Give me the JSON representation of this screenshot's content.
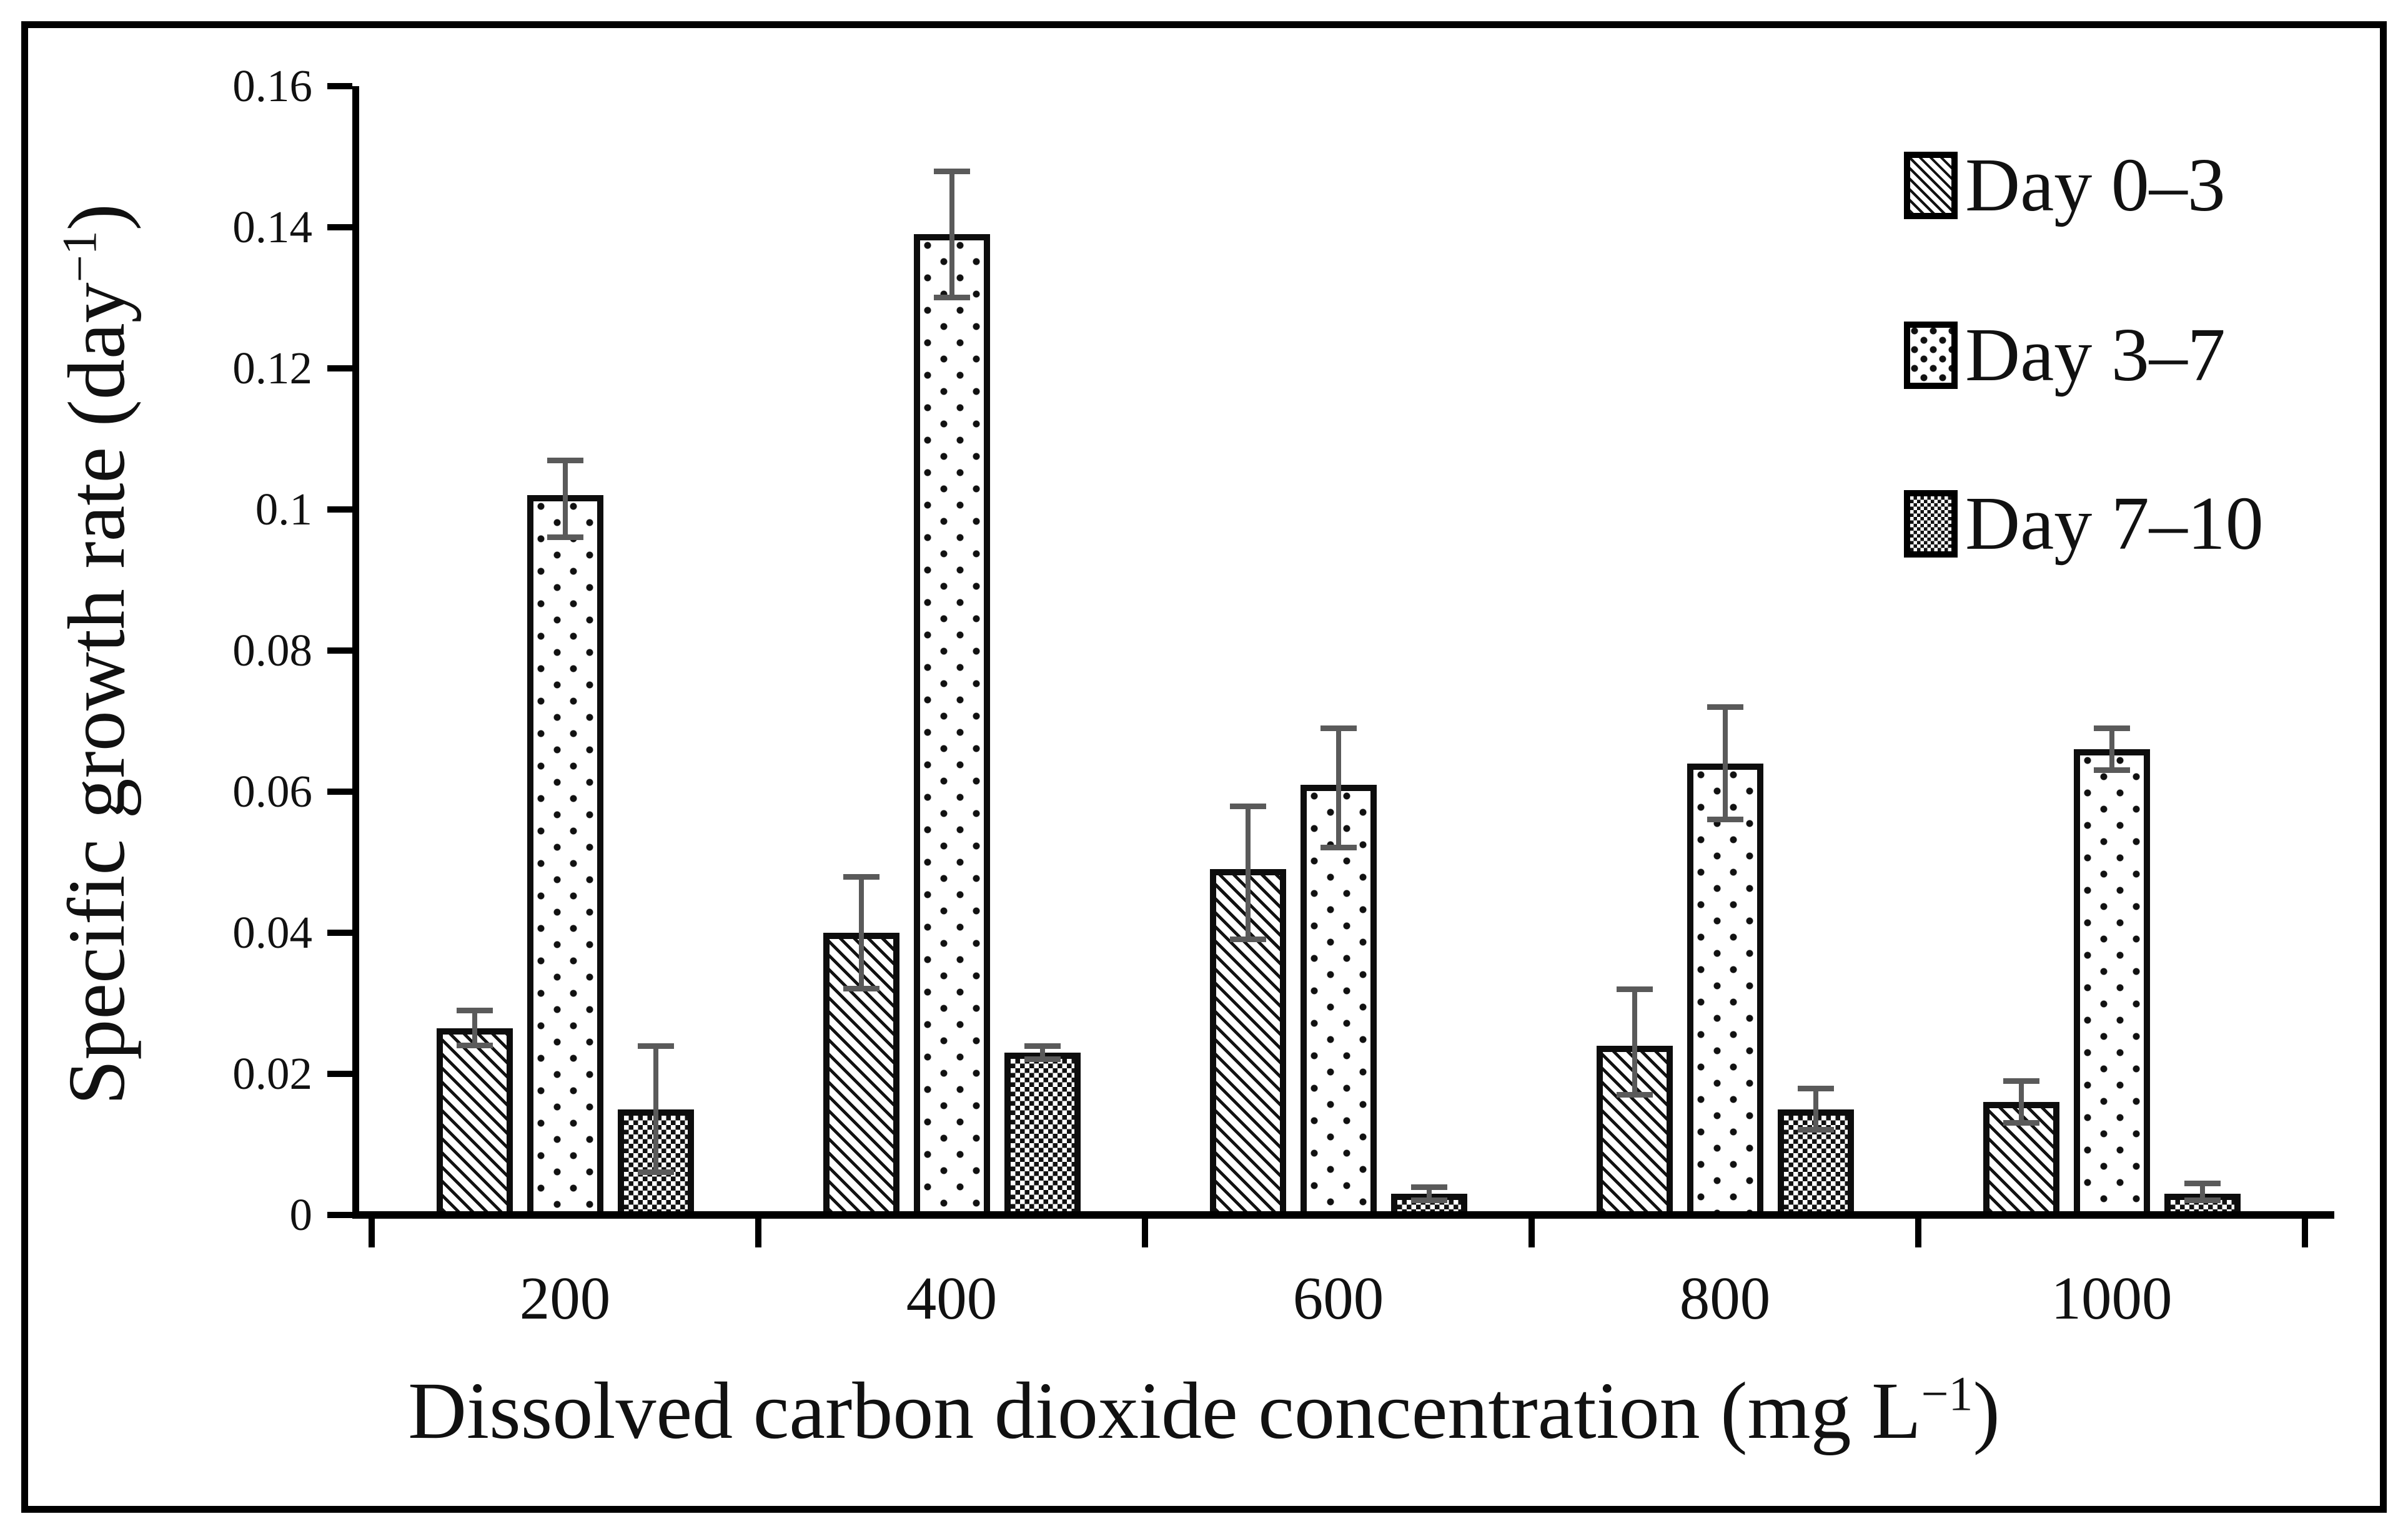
{
  "figure": {
    "background": "#ffffff",
    "frame_border_color": "#000000"
  },
  "chart_data": {
    "type": "bar",
    "title": "",
    "xlabel_html": "Dissolved carbon dioxide concentration (mg L<sup>−1</sup>)",
    "ylabel_html": "Specific growth rate (day<sup>−1</sup>)",
    "categories": [
      "200",
      "400",
      "600",
      "800",
      "1000"
    ],
    "y_ticks": [
      "0",
      "0.02",
      "0.04",
      "0.06",
      "0.08",
      "0.1",
      "0.12",
      "0.14",
      "0.16"
    ],
    "ylim": [
      0,
      0.16
    ],
    "grid": false,
    "legend_position": "top-right",
    "series": [
      {
        "name": "Day 0–3",
        "pattern": "diagonal-hatch",
        "values": [
          0.0265,
          0.04,
          0.049,
          0.024,
          0.016
        ],
        "error_low": [
          0.024,
          0.032,
          0.039,
          0.017,
          0.013
        ],
        "error_high": [
          0.029,
          0.048,
          0.058,
          0.032,
          0.019
        ]
      },
      {
        "name": "Day 3–7",
        "pattern": "dots",
        "values": [
          0.102,
          0.139,
          0.061,
          0.064,
          0.066
        ],
        "error_low": [
          0.096,
          0.13,
          0.052,
          0.056,
          0.063
        ],
        "error_high": [
          0.107,
          0.148,
          0.069,
          0.072,
          0.069
        ]
      },
      {
        "name": "Day 7–10",
        "pattern": "checker",
        "values": [
          0.015,
          0.023,
          0.003,
          0.015,
          0.003
        ],
        "error_low": [
          0.006,
          0.022,
          0.002,
          0.012,
          0.002
        ],
        "error_high": [
          0.024,
          0.024,
          0.004,
          0.018,
          0.0045
        ]
      }
    ],
    "colors": {
      "bar_fill": "#ffffff",
      "bar_border": "#0d0d0d",
      "error_bar": "#5a5a5a",
      "axis": "#000000",
      "text": "#111111"
    }
  }
}
